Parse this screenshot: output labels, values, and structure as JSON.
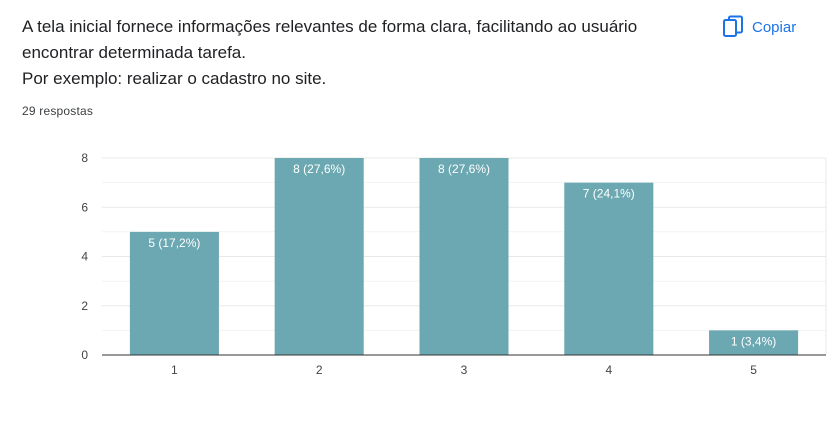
{
  "question": {
    "line1": "A tela inicial fornece informações relevantes de forma clara, facilitando ao usuário",
    "line2": "encontrar determinada tarefa.",
    "line3": "Por exemplo: realizar o cadastro no site."
  },
  "responses_count": "29 respostas",
  "copy": {
    "label": "Copiar",
    "icon": "copy-icon"
  },
  "colors": {
    "bar": "#6ba8b1",
    "accent": "#1a73e8",
    "grid": "#e8e8e8",
    "axis": "#333333"
  },
  "chart_data": {
    "type": "bar",
    "categories": [
      "1",
      "2",
      "3",
      "4",
      "5"
    ],
    "values": [
      5,
      8,
      8,
      7,
      1
    ],
    "data_labels": [
      "5 (17,2%)",
      "8 (27,6%)",
      "8 (27,6%)",
      "7 (24,1%)",
      "1 (3,4%)"
    ],
    "yticks": [
      0,
      2,
      4,
      6,
      8
    ],
    "ylim": [
      0,
      8
    ],
    "grid": true,
    "title": "",
    "xlabel": "",
    "ylabel": ""
  }
}
